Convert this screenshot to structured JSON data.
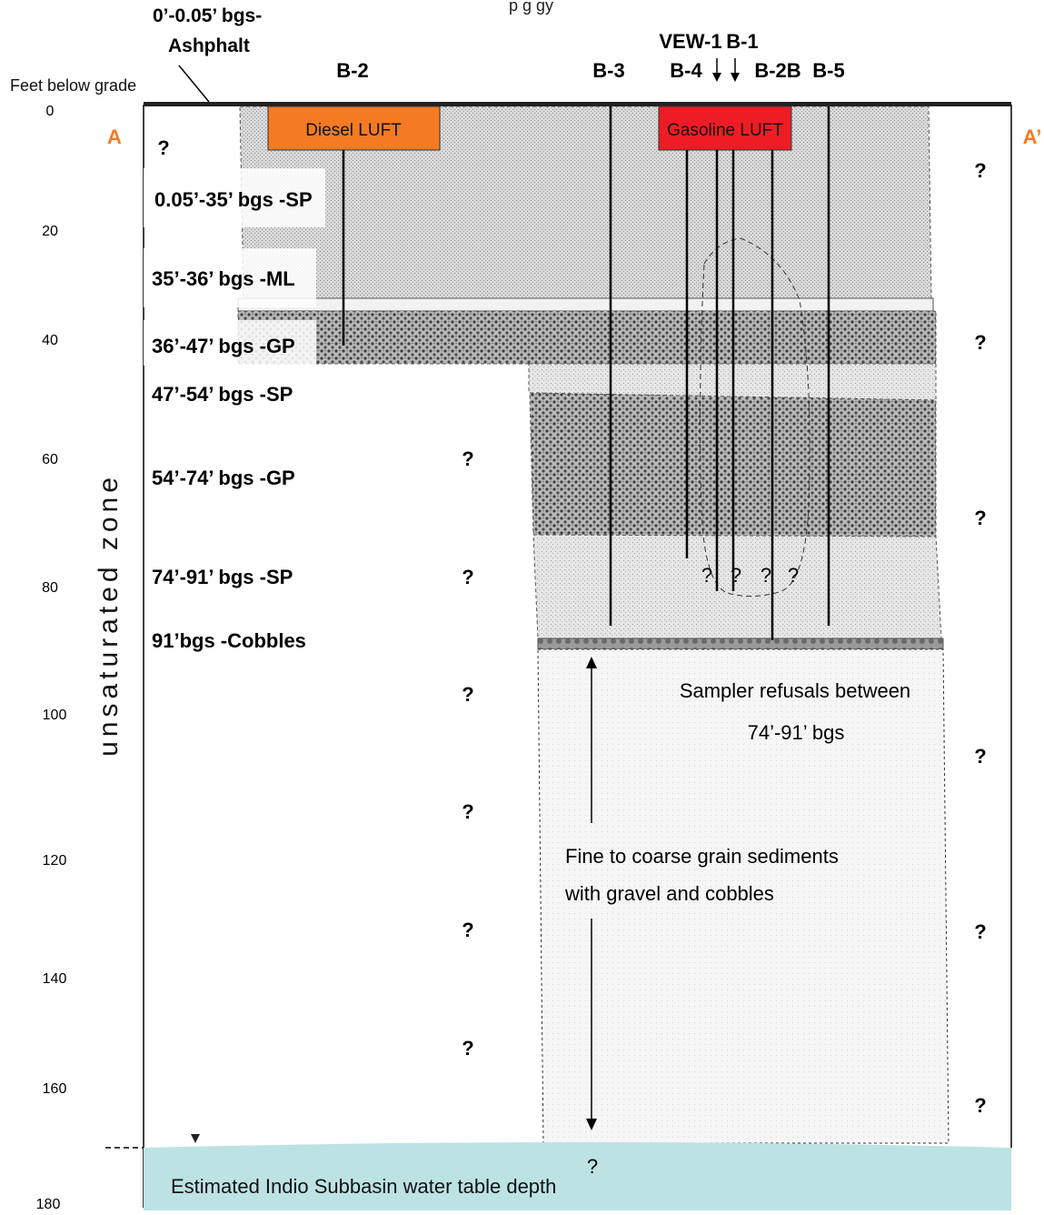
{
  "header": {
    "asphalt_line1": "0’-0.05’ bgs-",
    "asphalt_line2": "Ashphalt",
    "feet_below_grade": "Feet below grade",
    "partial_title": "p         g                          gy"
  },
  "depth_axis": {
    "ticks": [
      "0",
      "20",
      "40",
      "60",
      "80",
      "100",
      "120",
      "140",
      "160",
      "180"
    ],
    "zone_label": "unsaturated zone"
  },
  "section_ends": {
    "left": "A",
    "right": "A’"
  },
  "borings": [
    {
      "label": "B-2"
    },
    {
      "label": "B-3"
    },
    {
      "label": "VEW-1"
    },
    {
      "label": "B-1"
    },
    {
      "label": "B-4"
    },
    {
      "label": "B-2B"
    },
    {
      "label": "B-5"
    }
  ],
  "lufts": {
    "diesel": "Diesel LUFT",
    "gasoline": "Gasoline LUFT"
  },
  "layers": [
    "0.05’-35’ bgs -SP",
    "35’-36’ bgs -ML",
    "36’-47’ bgs -GP",
    "47’-54’ bgs -SP",
    "54’-74’ bgs -GP",
    "74’-91’ bgs -SP",
    "91’bgs -Cobbles"
  ],
  "unknown_mark": "?",
  "notes": {
    "refusal_line1": "Sampler refusals between",
    "refusal_line2": "74’-91’ bgs",
    "sediment_line1": "Fine to coarse grain sediments",
    "sediment_line2": "with gravel and cobbles"
  },
  "water_table_label": "Estimated Indio Subbasin water table depth",
  "colors": {
    "diesel_luft": "#f47a23",
    "gasoline_luft": "#ee1c24",
    "end_label": "#f47a23",
    "water": "#bde2e4"
  }
}
